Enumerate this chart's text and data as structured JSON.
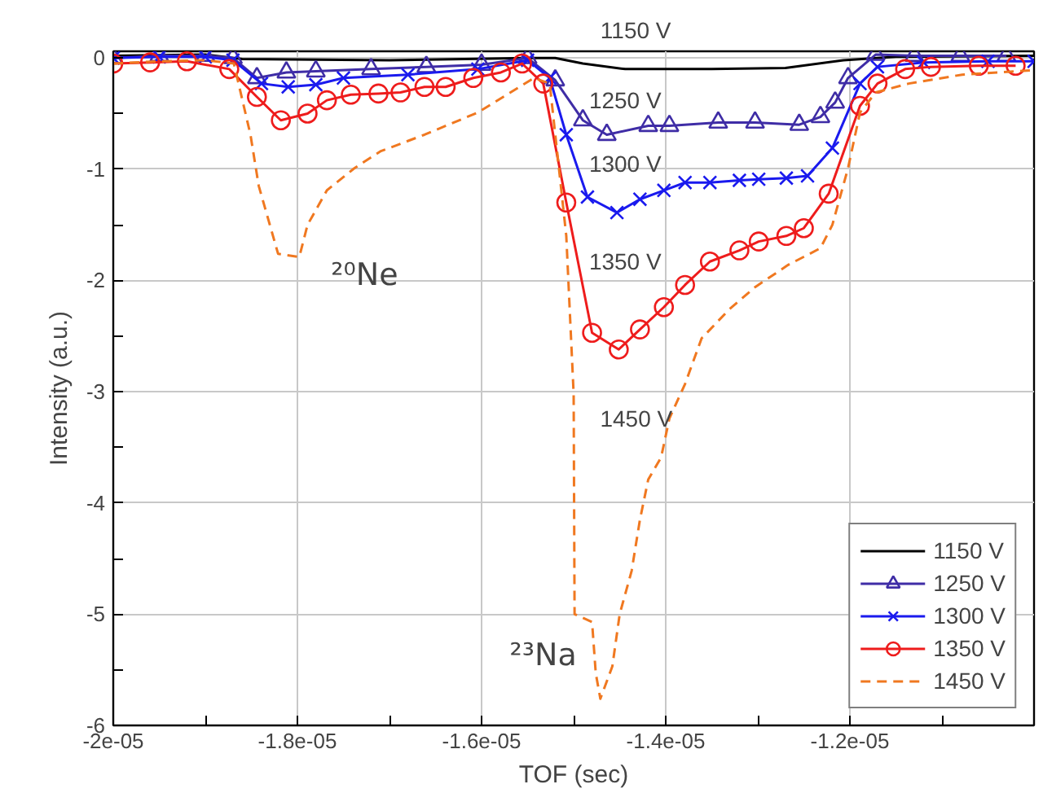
{
  "chart_data": {
    "type": "line",
    "xlabel": "TOF (sec)",
    "ylabel": "Intensity (a.u.)",
    "xlim": [
      -2e-05,
      -1e-05
    ],
    "ylim": [
      -6,
      0.06
    ],
    "xticks": [
      {
        "value": -2e-05,
        "label": "-2e-05"
      },
      {
        "value": -1.9e-05,
        "label": null
      },
      {
        "value": -1.8e-05,
        "label": "-1.8e-05"
      },
      {
        "value": -1.7e-05,
        "label": null
      },
      {
        "value": -1.6e-05,
        "label": "-1.6e-05"
      },
      {
        "value": -1.5e-05,
        "label": null
      },
      {
        "value": -1.4e-05,
        "label": "-1.4e-05"
      },
      {
        "value": -1.3e-05,
        "label": null
      },
      {
        "value": -1.2e-05,
        "label": "-1.2e-05"
      },
      {
        "value": -1.1e-05,
        "label": null
      }
    ],
    "yticks": [
      -6,
      {
        "value": -5.5,
        "label": null
      },
      -5,
      {
        "value": -4.5,
        "label": null
      },
      -4,
      {
        "value": -3.5,
        "label": null
      },
      -3,
      {
        "value": -2.5,
        "label": null
      },
      -2,
      {
        "value": -1.5,
        "label": null
      },
      -1,
      {
        "value": -0.5,
        "label": null
      },
      0
    ],
    "grid": true,
    "legend": "bottom right",
    "series": [
      {
        "name": "1150 V",
        "color": "#000000",
        "marker": "none",
        "line_style": "solid",
        "x": [
          -2e-05,
          -1.9e-05,
          -1.86e-05,
          -1.7e-05,
          -1.55e-05,
          -1.52e-05,
          -1.49e-05,
          -1.444e-05,
          -1.35e-05,
          -1.27e-05,
          -1.207e-05,
          -1.15e-05,
          -1e-05
        ],
        "values": [
          0.02,
          0.03,
          -0.01,
          -0.02,
          0.0,
          0.0,
          -0.05,
          -0.1,
          -0.1,
          -0.09,
          -0.02,
          0.01,
          0.02
        ]
      },
      {
        "name": "1250 V",
        "color": "#3f2da6",
        "marker": "triangle",
        "line_style": "solid",
        "x": [
          -2e-05,
          -1.95e-05,
          -1.9e-05,
          -1.87e-05,
          -1.844e-05,
          -1.812e-05,
          -1.78e-05,
          -1.72e-05,
          -1.66e-05,
          -1.6e-05,
          -1.55e-05,
          -1.52e-05,
          -1.49e-05,
          -1.464e-05,
          -1.419e-05,
          -1.396e-05,
          -1.343e-05,
          -1.303e-05,
          -1.255e-05,
          -1.232e-05,
          -1.216e-05,
          -1.202e-05,
          -1.172e-05,
          -1.13e-05,
          -1.08e-05,
          -1.03e-05
        ],
        "values": [
          0.0,
          0.02,
          0.02,
          0.0,
          -0.18,
          -0.13,
          -0.12,
          -0.1,
          -0.08,
          -0.06,
          0.0,
          -0.2,
          -0.56,
          -0.69,
          -0.61,
          -0.61,
          -0.58,
          -0.58,
          -0.6,
          -0.53,
          -0.4,
          -0.18,
          0.03,
          0.02,
          0.02,
          0.02
        ]
      },
      {
        "name": "1300 V",
        "color": "#1a1aee",
        "marker": "cross",
        "line_style": "solid",
        "x": [
          -2e-05,
          -1.95e-05,
          -1.9e-05,
          -1.87e-05,
          -1.839e-05,
          -1.81e-05,
          -1.78e-05,
          -1.75e-05,
          -1.68e-05,
          -1.604e-05,
          -1.55e-05,
          -1.526e-05,
          -1.508e-05,
          -1.485e-05,
          -1.453e-05,
          -1.428e-05,
          -1.402e-05,
          -1.379e-05,
          -1.352e-05,
          -1.32e-05,
          -1.299e-05,
          -1.269e-05,
          -1.246e-05,
          -1.219e-05,
          -1.189e-05,
          -1.17e-05,
          -1.12e-05,
          -1.05e-05,
          -1e-05
        ],
        "values": [
          0.0,
          0.01,
          0.01,
          -0.02,
          -0.23,
          -0.26,
          -0.24,
          -0.18,
          -0.15,
          -0.1,
          -0.02,
          -0.18,
          -0.69,
          -1.25,
          -1.39,
          -1.27,
          -1.19,
          -1.12,
          -1.12,
          -1.1,
          -1.09,
          -1.08,
          -1.06,
          -0.81,
          -0.23,
          -0.08,
          -0.04,
          -0.03,
          -0.03
        ]
      },
      {
        "name": "1350 V",
        "color": "#ee1c1c",
        "marker": "circle",
        "line_style": "solid",
        "x": [
          -2e-05,
          -1.96e-05,
          -1.92e-05,
          -1.874e-05,
          -1.844e-05,
          -1.818e-05,
          -1.789e-05,
          -1.768e-05,
          -1.742e-05,
          -1.712e-05,
          -1.688e-05,
          -1.662e-05,
          -1.639e-05,
          -1.609e-05,
          -1.579e-05,
          -1.556e-05,
          -1.533e-05,
          -1.508e-05,
          -1.48e-05,
          -1.451e-05,
          -1.428e-05,
          -1.402e-05,
          -1.379e-05,
          -1.352e-05,
          -1.32e-05,
          -1.299e-05,
          -1.269e-05,
          -1.25e-05,
          -1.223e-05,
          -1.189e-05,
          -1.17e-05,
          -1.14e-05,
          -1.112e-05,
          -1.06e-05,
          -1.02e-05
        ],
        "values": [
          -0.05,
          -0.04,
          -0.03,
          -0.1,
          -0.35,
          -0.56,
          -0.5,
          -0.38,
          -0.33,
          -0.32,
          -0.31,
          -0.26,
          -0.26,
          -0.18,
          -0.13,
          -0.05,
          -0.23,
          -1.3,
          -2.47,
          -2.62,
          -2.44,
          -2.24,
          -2.04,
          -1.83,
          -1.73,
          -1.65,
          -1.6,
          -1.53,
          -1.22,
          -0.43,
          -0.23,
          -0.1,
          -0.08,
          -0.07,
          -0.07
        ]
      },
      {
        "name": "1450 V",
        "color": "#f07820",
        "marker": "none",
        "line_style": "dashed",
        "x": [
          -2e-05,
          -1.95e-05,
          -1.9e-05,
          -1.869e-05,
          -1.851e-05,
          -1.842e-05,
          -1.821e-05,
          -1.798e-05,
          -1.789e-05,
          -1.768e-05,
          -1.738e-05,
          -1.71e-05,
          -1.662e-05,
          -1.604e-05,
          -1.543e-05,
          -1.526e-05,
          -1.508e-05,
          -1.5e-05,
          -1.499e-05,
          -1.48e-05,
          -1.476e-05,
          -1.471e-05,
          -1.458e-05,
          -1.45e-05,
          -1.437e-05,
          -1.428e-05,
          -1.419e-05,
          -1.405e-05,
          -1.396e-05,
          -1.379e-05,
          -1.361e-05,
          -1.331e-05,
          -1.303e-05,
          -1.267e-05,
          -1.232e-05,
          -1.219e-05,
          -1.202e-05,
          -1.189e-05,
          -1.172e-05,
          -1.136e-05,
          -1.078e-05,
          -1.002e-05
        ],
        "values": [
          -0.05,
          -0.03,
          -0.02,
          -0.05,
          -0.69,
          -1.15,
          -1.76,
          -1.79,
          -1.5,
          -1.19,
          -0.99,
          -0.84,
          -0.69,
          -0.49,
          -0.18,
          -0.23,
          -1.6,
          -3.02,
          -5.0,
          -5.07,
          -5.53,
          -5.76,
          -5.47,
          -5.0,
          -4.61,
          -4.15,
          -3.79,
          -3.59,
          -3.24,
          -2.93,
          -2.52,
          -2.26,
          -2.06,
          -1.86,
          -1.71,
          -1.5,
          -0.99,
          -0.49,
          -0.31,
          -0.23,
          -0.15,
          -0.11
        ]
      }
    ],
    "annotations": [
      "1150 V",
      "1250 V",
      "1300 V",
      "1350 V",
      "1450 V",
      "²⁰Ne",
      "²³Na"
    ]
  }
}
